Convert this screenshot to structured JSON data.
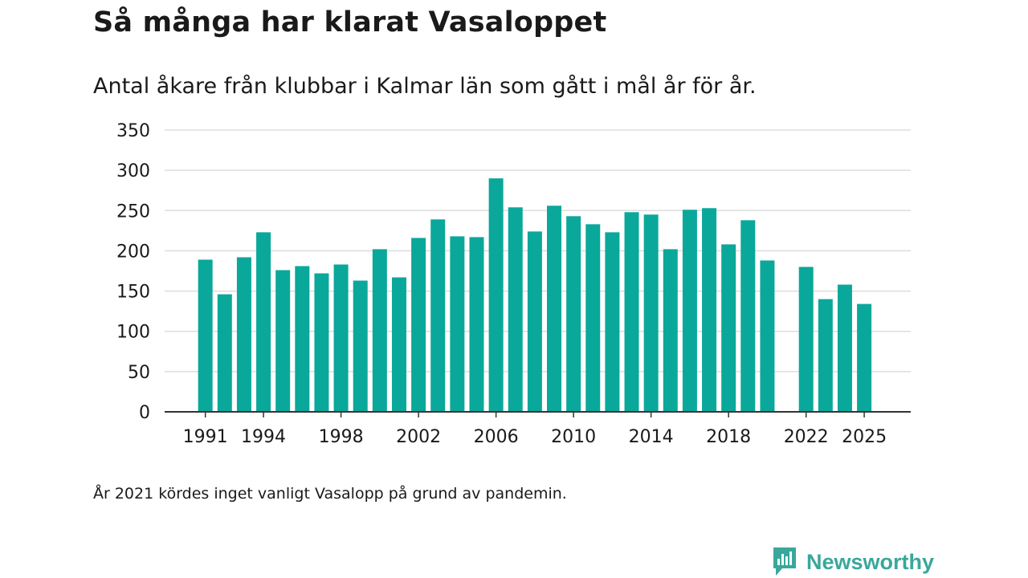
{
  "title": "Så många har klarat Vasaloppet",
  "subtitle": "Antal åkare från klubbar i Kalmar län som gått i mål år för år.",
  "footnote": "År 2021 kördes inget vanligt Vasalopp på grund av pandemin.",
  "brand": {
    "name": "Newsworthy",
    "icon": "newsworthy-logo-icon"
  },
  "colors": {
    "bar": "#0aa89a",
    "grid": "#dddddd",
    "axis": "#333333",
    "brand": "#3aa79c"
  },
  "chart_data": {
    "type": "bar",
    "title": "Så många har klarat Vasaloppet",
    "subtitle": "Antal åkare från klubbar i Kalmar län som gått i mål år för år.",
    "xlabel": "",
    "ylabel": "",
    "ylim": [
      0,
      350
    ],
    "yticks": [
      0,
      50,
      100,
      150,
      200,
      250,
      300,
      350
    ],
    "xticks": [
      1991,
      1994,
      1998,
      2002,
      2006,
      2010,
      2014,
      2018,
      2022,
      2025
    ],
    "xlim": [
      1988.9,
      2027.4
    ],
    "grid": true,
    "categories": [
      1991,
      1992,
      1993,
      1994,
      1995,
      1996,
      1997,
      1998,
      1999,
      2000,
      2001,
      2002,
      2003,
      2004,
      2005,
      2006,
      2007,
      2008,
      2009,
      2010,
      2011,
      2012,
      2013,
      2014,
      2015,
      2016,
      2017,
      2018,
      2019,
      2020,
      2022,
      2023,
      2024,
      2025
    ],
    "values": [
      189,
      146,
      192,
      223,
      176,
      181,
      172,
      183,
      163,
      202,
      167,
      216,
      239,
      218,
      217,
      290,
      254,
      224,
      256,
      243,
      233,
      223,
      248,
      245,
      202,
      251,
      253,
      208,
      238,
      188,
      180,
      140,
      158,
      134
    ]
  }
}
